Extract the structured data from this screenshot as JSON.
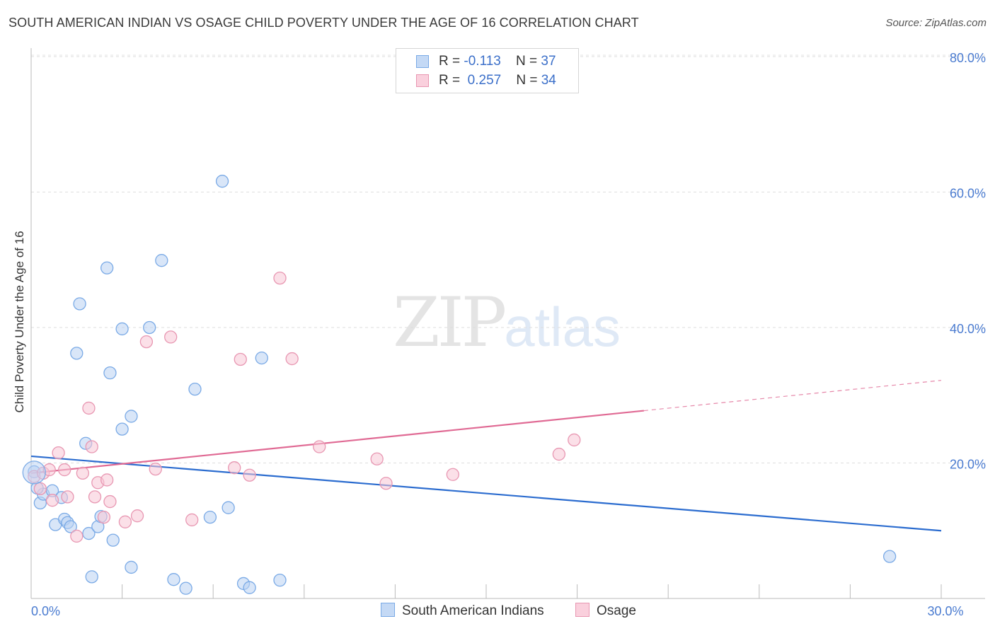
{
  "header": {
    "title": "SOUTH AMERICAN INDIAN VS OSAGE CHILD POVERTY UNDER THE AGE OF 16 CORRELATION CHART",
    "source": "Source: ZipAtlas.com"
  },
  "watermark": {
    "zip": "ZIP",
    "atlas": "atlas"
  },
  "legend": {
    "rows": [
      {
        "r_label": "R =",
        "r_value": "-0.113",
        "n_label": "N =",
        "n_value": "37"
      },
      {
        "r_label": "R =",
        "r_value": " 0.257",
        "n_label": "N =",
        "n_value": "34"
      }
    ]
  },
  "chart_data": {
    "type": "scatter",
    "title": "SOUTH AMERICAN INDIAN VS OSAGE CHILD POVERTY UNDER THE AGE OF 16 CORRELATION CHART",
    "xlabel": "",
    "ylabel": "Child Poverty Under the Age of 16",
    "xlim": [
      0,
      30
    ],
    "ylim": [
      0,
      80
    ],
    "x_ticks": [
      {
        "value": 0,
        "label": "0.0%"
      },
      {
        "value": 30,
        "label": "30.0%"
      }
    ],
    "y_ticks": [
      {
        "value": 20,
        "label": "20.0%"
      },
      {
        "value": 40,
        "label": "40.0%"
      },
      {
        "value": 60,
        "label": "60.0%"
      },
      {
        "value": 80,
        "label": "80.0%"
      }
    ],
    "grid": true,
    "legend_position": "top-center",
    "series": [
      {
        "name": "South American Indians",
        "color": "#7aaae6",
        "fill": "#b9d2f3",
        "line_color": "#2b6ccf",
        "trend": {
          "x0": 0,
          "y0": 21.0,
          "x1": 30,
          "y1": 10.0,
          "solid_until": 30
        },
        "points": [
          [
            0.1,
            18.7
          ],
          [
            0.3,
            14.1
          ],
          [
            0.4,
            15.4
          ],
          [
            0.7,
            15.9
          ],
          [
            0.8,
            10.9
          ],
          [
            1.0,
            14.9
          ],
          [
            1.1,
            11.7
          ],
          [
            1.2,
            11.2
          ],
          [
            1.3,
            10.6
          ],
          [
            1.5,
            36.2
          ],
          [
            1.6,
            43.5
          ],
          [
            1.8,
            22.9
          ],
          [
            1.9,
            9.6
          ],
          [
            2.0,
            3.2
          ],
          [
            2.2,
            10.6
          ],
          [
            2.3,
            12.1
          ],
          [
            2.5,
            48.8
          ],
          [
            2.6,
            33.3
          ],
          [
            2.7,
            8.6
          ],
          [
            3.0,
            25.0
          ],
          [
            3.0,
            39.8
          ],
          [
            3.3,
            4.6
          ],
          [
            3.3,
            26.9
          ],
          [
            3.9,
            40.0
          ],
          [
            4.3,
            49.9
          ],
          [
            4.7,
            2.8
          ],
          [
            5.1,
            1.5
          ],
          [
            5.4,
            30.9
          ],
          [
            5.9,
            12.0
          ],
          [
            6.3,
            61.6
          ],
          [
            6.5,
            13.4
          ],
          [
            7.0,
            2.2
          ],
          [
            7.2,
            1.6
          ],
          [
            7.6,
            35.5
          ],
          [
            8.2,
            2.7
          ],
          [
            28.3,
            6.2
          ],
          [
            0.2,
            16.3
          ]
        ]
      },
      {
        "name": "Osage",
        "color": "#e897b2",
        "fill": "#f7c6d5",
        "line_color": "#e06a94",
        "trend": {
          "x0": 0,
          "y0": 18.5,
          "x1": 30,
          "y1": 32.2,
          "solid_until": 20.2
        },
        "points": [
          [
            0.1,
            18.0
          ],
          [
            0.3,
            16.2
          ],
          [
            0.4,
            18.5
          ],
          [
            0.6,
            19.0
          ],
          [
            0.7,
            14.5
          ],
          [
            0.9,
            21.5
          ],
          [
            1.1,
            19.0
          ],
          [
            1.2,
            15.0
          ],
          [
            1.5,
            9.2
          ],
          [
            1.7,
            18.5
          ],
          [
            1.9,
            28.1
          ],
          [
            2.0,
            22.4
          ],
          [
            2.1,
            15.0
          ],
          [
            2.2,
            17.1
          ],
          [
            2.4,
            12.0
          ],
          [
            2.5,
            17.5
          ],
          [
            2.6,
            14.3
          ],
          [
            3.1,
            11.3
          ],
          [
            3.5,
            12.2
          ],
          [
            3.8,
            37.9
          ],
          [
            4.1,
            19.1
          ],
          [
            4.6,
            38.6
          ],
          [
            5.3,
            11.6
          ],
          [
            6.7,
            19.3
          ],
          [
            6.9,
            35.3
          ],
          [
            7.2,
            18.2
          ],
          [
            8.2,
            47.3
          ],
          [
            8.6,
            35.4
          ],
          [
            9.5,
            22.4
          ],
          [
            11.4,
            20.6
          ],
          [
            11.7,
            17.0
          ],
          [
            13.9,
            18.3
          ],
          [
            17.4,
            21.3
          ],
          [
            17.9,
            23.4
          ]
        ]
      }
    ]
  },
  "bottom_legend": [
    {
      "label": "South American Indians"
    },
    {
      "label": "Osage"
    }
  ],
  "colors": {
    "blue_swatch_fill": "#c4d9f5",
    "blue_swatch_border": "#7aaae6",
    "pink_swatch_fill": "#fad0dd",
    "pink_swatch_border": "#e897b2",
    "tick_color": "#4a7bd0"
  }
}
